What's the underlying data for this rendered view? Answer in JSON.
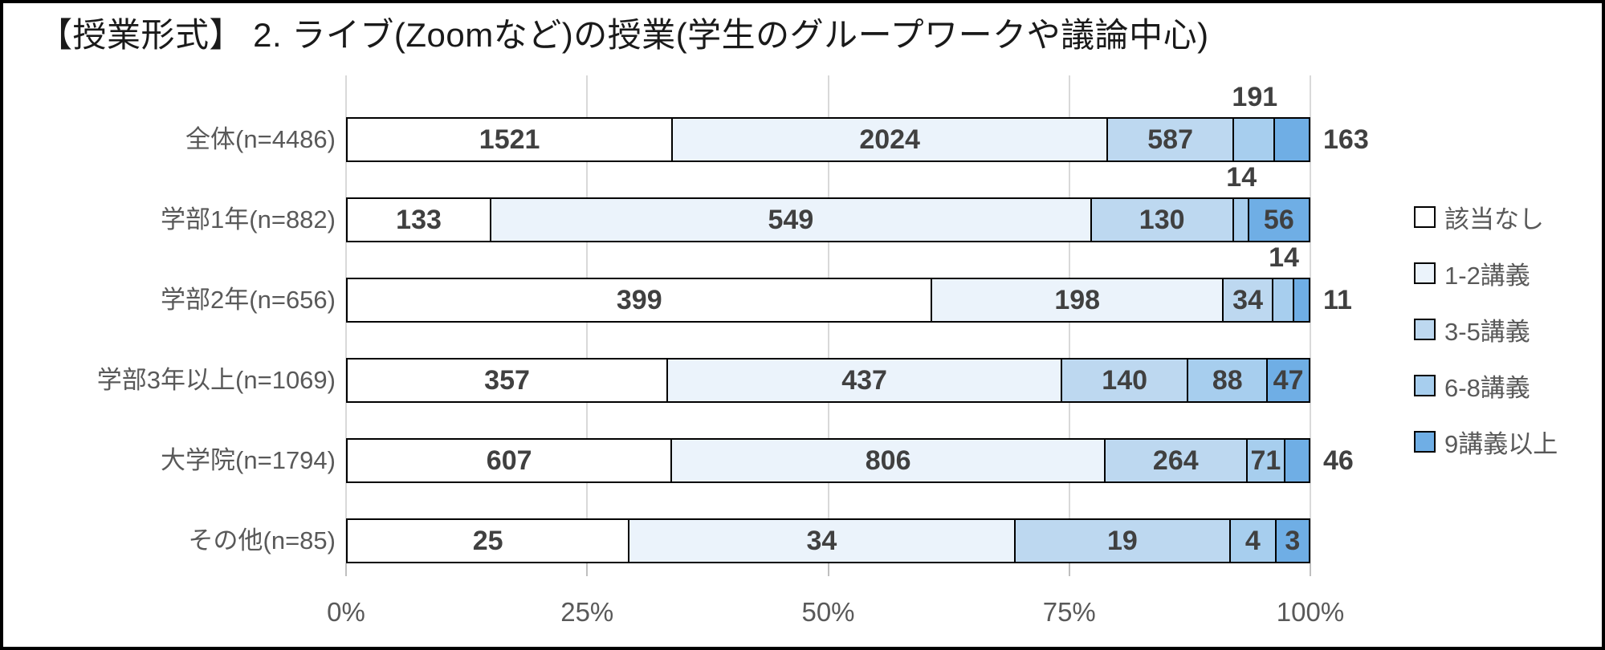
{
  "title": "【授業形式】 2. ライブ(Zoomなど)の授業(学生のグループワークや議論中心)",
  "colors": {
    "frame_border": "#000000",
    "gridline": "#d9d9d9",
    "axis_tick": "#bfbfbf",
    "data_label_text": "#404040",
    "axis_text": "#595959",
    "row_label_text": "#595959",
    "title_text": "#1a1a1a",
    "bar_border": "#000000"
  },
  "chart_data": {
    "type": "bar",
    "orientation": "horizontal",
    "stacked": true,
    "normalized": "percent_of_row_total",
    "grid": true,
    "legend_position": "right",
    "title": "【授業形式】 2. ライブ(Zoomなど)の授業(学生のグループワークや議論中心)",
    "x_axis": {
      "ticks": [
        "0%",
        "25%",
        "50%",
        "75%",
        "100%"
      ],
      "range": [
        0,
        100
      ]
    },
    "series": [
      {
        "name": "該当なし",
        "color": "#ffffff"
      },
      {
        "name": "1-2講義",
        "color": "#ebf3fb"
      },
      {
        "name": "3-5講義",
        "color": "#bdd8f0"
      },
      {
        "name": "6-8講義",
        "color": "#a7ceee"
      },
      {
        "name": "9講義以上",
        "color": "#6faee5"
      }
    ],
    "rows": [
      {
        "label": "全体(n=4486)",
        "n": 4486,
        "values": [
          1521,
          2024,
          587,
          191,
          163
        ],
        "label_pos": [
          "in",
          "in",
          "in",
          "above",
          "right"
        ]
      },
      {
        "label": "学部1年(n=882)",
        "n": 882,
        "values": [
          133,
          549,
          130,
          14,
          56
        ],
        "label_pos": [
          "in",
          "in",
          "in",
          "above",
          "in"
        ]
      },
      {
        "label": "学部2年(n=656)",
        "n": 656,
        "values": [
          399,
          198,
          34,
          14,
          11
        ],
        "label_pos": [
          "in",
          "in",
          "in",
          "above",
          "right"
        ]
      },
      {
        "label": "学部3年以上(n=1069)",
        "n": 1069,
        "values": [
          357,
          437,
          140,
          88,
          47
        ],
        "label_pos": [
          "in",
          "in",
          "in",
          "in",
          "in"
        ]
      },
      {
        "label": "大学院(n=1794)",
        "n": 1794,
        "values": [
          607,
          806,
          264,
          71,
          46
        ],
        "label_pos": [
          "in",
          "in",
          "in",
          "in",
          "right"
        ]
      },
      {
        "label": "その他(n=85)",
        "n": 85,
        "values": [
          25,
          34,
          19,
          4,
          3
        ],
        "label_pos": [
          "in",
          "in",
          "in",
          "in",
          "in"
        ]
      }
    ]
  }
}
